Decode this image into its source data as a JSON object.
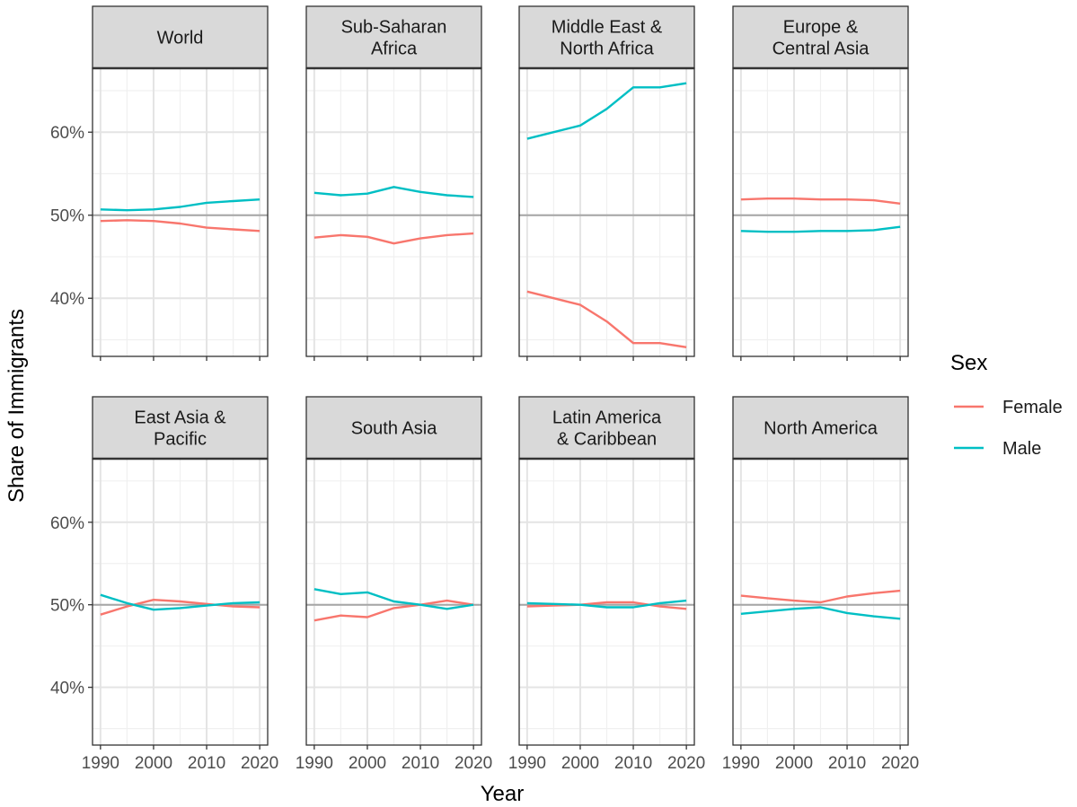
{
  "chart_data": {
    "type": "line",
    "xlabel": "Year",
    "ylabel": "Share of Immigrants",
    "x_ticks": [
      1990,
      2000,
      2010,
      2020
    ],
    "y_ticks": [
      0.4,
      0.5,
      0.6
    ],
    "y_tick_labels": [
      "40%",
      "50%",
      "60%"
    ],
    "xlim": [
      1988.5,
      2021.5
    ],
    "ylim": [
      0.33,
      0.677
    ],
    "reference_line": 0.5,
    "legend": {
      "title": "Sex",
      "position": "right",
      "entries": [
        {
          "name": "Female",
          "color": "#F8766D"
        },
        {
          "name": "Male",
          "color": "#00BFC4"
        }
      ]
    },
    "x": [
      1990,
      1995,
      2000,
      2005,
      2010,
      2015,
      2020
    ],
    "panels": [
      {
        "strip": [
          "World"
        ],
        "series": [
          {
            "name": "Female",
            "values": [
              0.493,
              0.494,
              0.493,
              0.49,
              0.485,
              0.483,
              0.481
            ]
          },
          {
            "name": "Male",
            "values": [
              0.507,
              0.506,
              0.507,
              0.51,
              0.515,
              0.517,
              0.519
            ]
          }
        ]
      },
      {
        "strip": [
          "Sub-Saharan",
          "Africa"
        ],
        "series": [
          {
            "name": "Female",
            "values": [
              0.473,
              0.476,
              0.474,
              0.466,
              0.472,
              0.476,
              0.478
            ]
          },
          {
            "name": "Male",
            "values": [
              0.527,
              0.524,
              0.526,
              0.534,
              0.528,
              0.524,
              0.522
            ]
          }
        ]
      },
      {
        "strip": [
          "Middle East &",
          "North Africa"
        ],
        "series": [
          {
            "name": "Female",
            "values": [
              0.408,
              0.4,
              0.392,
              0.372,
              0.346,
              0.346,
              0.341
            ]
          },
          {
            "name": "Male",
            "values": [
              0.592,
              0.6,
              0.608,
              0.628,
              0.654,
              0.654,
              0.659
            ]
          }
        ]
      },
      {
        "strip": [
          "Europe &",
          "Central Asia"
        ],
        "series": [
          {
            "name": "Female",
            "values": [
              0.519,
              0.52,
              0.52,
              0.519,
              0.519,
              0.518,
              0.514
            ]
          },
          {
            "name": "Male",
            "values": [
              0.481,
              0.48,
              0.48,
              0.481,
              0.481,
              0.482,
              0.486
            ]
          }
        ]
      },
      {
        "strip": [
          "East Asia &",
          "Pacific"
        ],
        "series": [
          {
            "name": "Female",
            "values": [
              0.488,
              0.498,
              0.506,
              0.504,
              0.501,
              0.498,
              0.497
            ]
          },
          {
            "name": "Male",
            "values": [
              0.512,
              0.502,
              0.494,
              0.496,
              0.499,
              0.502,
              0.503
            ]
          }
        ]
      },
      {
        "strip": [
          "South Asia"
        ],
        "series": [
          {
            "name": "Female",
            "values": [
              0.481,
              0.487,
              0.485,
              0.496,
              0.5,
              0.505,
              0.5
            ]
          },
          {
            "name": "Male",
            "values": [
              0.519,
              0.513,
              0.515,
              0.504,
              0.5,
              0.495,
              0.5
            ]
          }
        ]
      },
      {
        "strip": [
          "Latin America",
          "& Caribbean"
        ],
        "series": [
          {
            "name": "Female",
            "values": [
              0.498,
              0.499,
              0.5,
              0.503,
              0.503,
              0.498,
              0.495
            ]
          },
          {
            "name": "Male",
            "values": [
              0.502,
              0.501,
              0.5,
              0.497,
              0.497,
              0.502,
              0.505
            ]
          }
        ]
      },
      {
        "strip": [
          "North America"
        ],
        "series": [
          {
            "name": "Female",
            "values": [
              0.511,
              0.508,
              0.505,
              0.503,
              0.51,
              0.514,
              0.517
            ]
          },
          {
            "name": "Male",
            "values": [
              0.489,
              0.492,
              0.495,
              0.497,
              0.49,
              0.486,
              0.483
            ]
          }
        ]
      }
    ]
  }
}
